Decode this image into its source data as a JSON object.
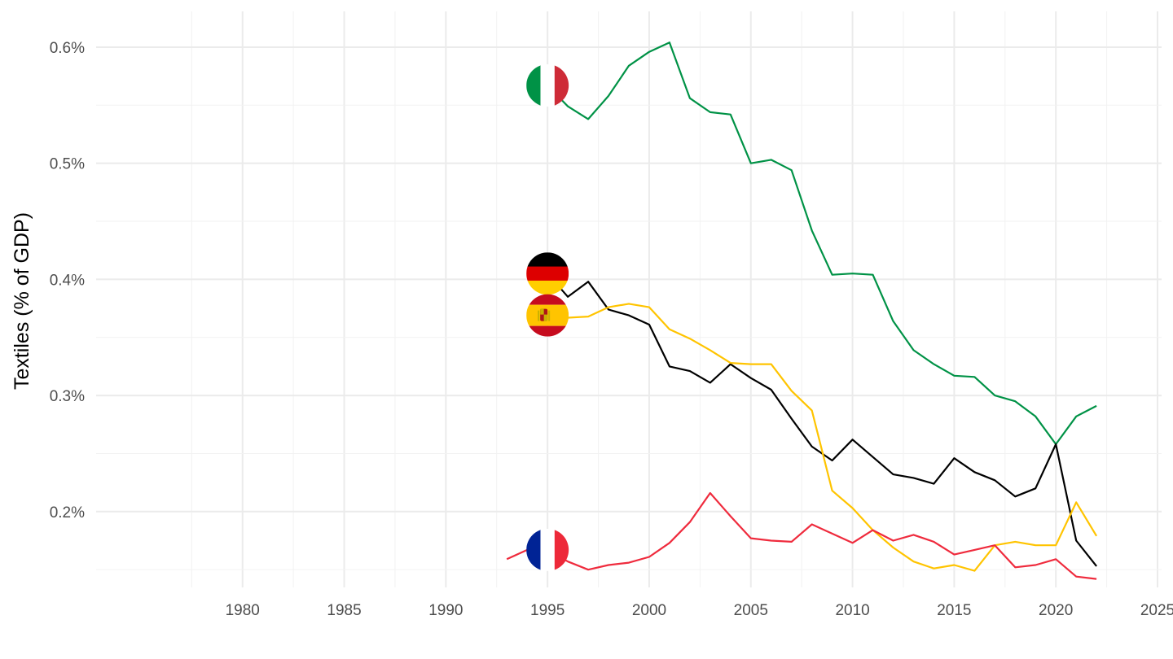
{
  "chart_data": {
    "type": "line",
    "title": "",
    "xlabel": "",
    "ylabel": "Textiles (% of GDP)",
    "xlim": [
      1972.8,
      2025.2
    ],
    "ylim": [
      0.1347,
      0.6308
    ],
    "x_ticks": [
      1980,
      1985,
      1990,
      1995,
      2000,
      2005,
      2010,
      2015,
      2020,
      2025
    ],
    "y_ticks": [
      0.2,
      0.3,
      0.4,
      0.5,
      0.6
    ],
    "y_tick_labels": [
      "0.2%",
      "0.3%",
      "0.4%",
      "0.5%",
      "0.6%"
    ],
    "grid": true,
    "legend": "flags at 1995",
    "series": [
      {
        "country": "Italy",
        "color": "#009246",
        "flag": [
          "#009246",
          "#ffffff",
          "#ce2b37"
        ],
        "flag_orientation": "vertical",
        "x": [
          1995,
          1996,
          1997,
          1998,
          1999,
          2000,
          2001,
          2002,
          2003,
          2004,
          2005,
          2006,
          2007,
          2008,
          2009,
          2010,
          2011,
          2012,
          2013,
          2014,
          2015,
          2016,
          2017,
          2018,
          2019,
          2020,
          2021,
          2022
        ],
        "y": [
          0.567,
          0.549,
          0.538,
          0.558,
          0.584,
          0.596,
          0.604,
          0.556,
          0.544,
          0.542,
          0.5,
          0.503,
          0.494,
          0.442,
          0.404,
          0.405,
          0.404,
          0.364,
          0.339,
          0.327,
          0.317,
          0.316,
          0.3,
          0.295,
          0.282,
          0.258,
          0.282,
          0.291
        ]
      },
      {
        "country": "Germany",
        "color": "#000000",
        "flag": [
          "#000000",
          "#dd0000",
          "#ffce00"
        ],
        "flag_orientation": "horizontal",
        "x": [
          1995,
          1996,
          1997,
          1998,
          1999,
          2000,
          2001,
          2002,
          2003,
          2004,
          2005,
          2006,
          2007,
          2008,
          2009,
          2010,
          2011,
          2012,
          2013,
          2014,
          2015,
          2016,
          2017,
          2018,
          2019,
          2020,
          2021,
          2022
        ],
        "y": [
          0.405,
          0.385,
          0.398,
          0.374,
          0.369,
          0.361,
          0.325,
          0.321,
          0.311,
          0.327,
          0.315,
          0.305,
          0.28,
          0.256,
          0.244,
          0.262,
          0.247,
          0.232,
          0.229,
          0.224,
          0.246,
          0.234,
          0.227,
          0.213,
          0.22,
          0.258,
          0.175,
          0.153
        ]
      },
      {
        "country": "Spain",
        "color": "#ffc400",
        "flag": [
          "#c60b1e",
          "#ffc400",
          "#c60b1e"
        ],
        "flag_orientation": "horizontal",
        "x": [
          1995,
          1996,
          1997,
          1998,
          1999,
          2000,
          2001,
          2002,
          2003,
          2004,
          2005,
          2006,
          2007,
          2008,
          2009,
          2010,
          2011,
          2012,
          2013,
          2014,
          2015,
          2016,
          2017,
          2018,
          2019,
          2020,
          2021,
          2022
        ],
        "y": [
          0.369,
          0.367,
          0.368,
          0.376,
          0.379,
          0.376,
          0.357,
          0.349,
          0.339,
          0.328,
          0.327,
          0.327,
          0.304,
          0.287,
          0.218,
          0.203,
          0.184,
          0.169,
          0.157,
          0.151,
          0.154,
          0.149,
          0.171,
          0.174,
          0.171,
          0.171,
          0.208,
          0.179
        ]
      },
      {
        "country": "France",
        "color": "#ef2b3d",
        "flag": [
          "#002395",
          "#ffffff",
          "#ed2939"
        ],
        "flag_orientation": "vertical",
        "x": [
          1993,
          1994,
          1995,
          1996,
          1997,
          1998,
          1999,
          2000,
          2001,
          2002,
          2003,
          2004,
          2005,
          2006,
          2007,
          2008,
          2009,
          2010,
          2011,
          2012,
          2013,
          2014,
          2015,
          2016,
          2017,
          2018,
          2019,
          2020,
          2021,
          2022
        ],
        "y": [
          0.159,
          0.167,
          0.167,
          0.157,
          0.15,
          0.154,
          0.156,
          0.161,
          0.173,
          0.191,
          0.216,
          0.196,
          0.177,
          0.175,
          0.174,
          0.189,
          0.181,
          0.173,
          0.184,
          0.175,
          0.18,
          0.174,
          0.163,
          0.167,
          0.171,
          0.152,
          0.154,
          0.159,
          0.144,
          0.142
        ]
      }
    ]
  }
}
